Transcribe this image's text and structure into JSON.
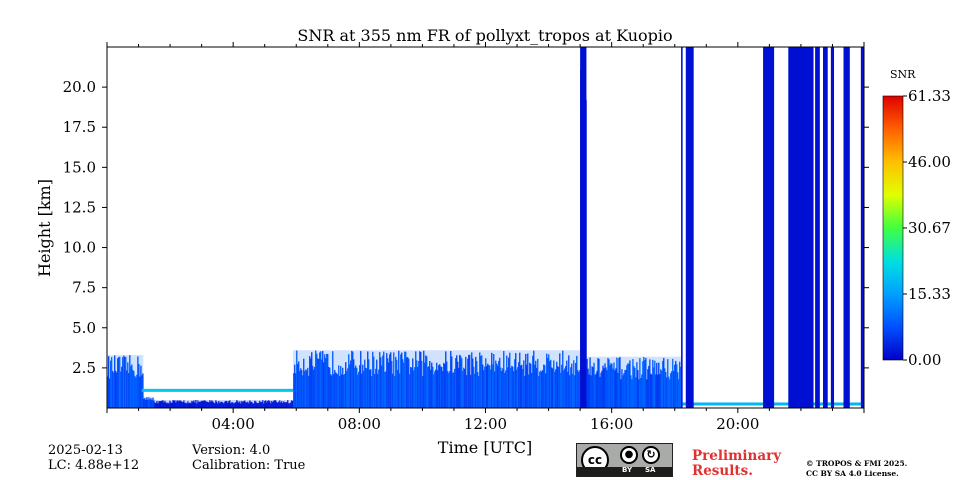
{
  "chart_data": {
    "type": "heatmap",
    "title": "SNR at 355 nm FR of pollyxt_tropos at Kuopio",
    "xlabel": "Time [UTC]",
    "ylabel": "Height [km]",
    "xlim_hours": [
      0,
      24
    ],
    "ylim_km": [
      0,
      22.5
    ],
    "x_ticks": [
      {
        "hour": 4,
        "label": "04:00"
      },
      {
        "hour": 8,
        "label": "08:00"
      },
      {
        "hour": 12,
        "label": "12:00"
      },
      {
        "hour": 16,
        "label": "16:00"
      },
      {
        "hour": 20,
        "label": "20:00"
      }
    ],
    "y_ticks": [
      {
        "value": 2.5,
        "label": "2.5"
      },
      {
        "value": 5.0,
        "label": "5.0"
      },
      {
        "value": 7.5,
        "label": "7.5"
      },
      {
        "value": 10.0,
        "label": "10.0"
      },
      {
        "value": 12.5,
        "label": "12.5"
      },
      {
        "value": 15.0,
        "label": "15.0"
      },
      {
        "value": 17.5,
        "label": "17.5"
      },
      {
        "value": 20.0,
        "label": "20.0"
      }
    ],
    "colorbar": {
      "label": "SNR",
      "min": 0.0,
      "max": 61.33,
      "ticks": [
        {
          "value": 0.0,
          "label": "0.00"
        },
        {
          "value": 15.33,
          "label": "15.33"
        },
        {
          "value": 30.67,
          "label": "30.67"
        },
        {
          "value": 46.0,
          "label": "46.00"
        },
        {
          "value": 61.33,
          "label": "61.33"
        }
      ],
      "colors": [
        "#0000c8",
        "#0050ff",
        "#00a0ff",
        "#00e0e0",
        "#40ff40",
        "#e0ff00",
        "#ffc000",
        "#ff6000",
        "#e00000"
      ]
    },
    "signal_regions": [
      {
        "start_h": 0.0,
        "end_h": 1.15,
        "top_km": 3.3,
        "snr": 10
      },
      {
        "start_h": 1.15,
        "end_h": 1.5,
        "top_km": 0.7,
        "snr": 8
      },
      {
        "start_h": 1.5,
        "end_h": 5.9,
        "top_km": 0.5,
        "snr": 3
      },
      {
        "start_h": 5.9,
        "end_h": 15.0,
        "top_km": 3.6,
        "snr": 9
      },
      {
        "start_h": 15.0,
        "end_h": 15.2,
        "top_km": 22.5,
        "snr": 1
      },
      {
        "start_h": 15.2,
        "end_h": 18.2,
        "top_km": 3.2,
        "snr": 9
      }
    ],
    "cloud_layers": [
      {
        "start_h": 1.1,
        "end_h": 5.9,
        "height_km": 1.1,
        "snr": 20
      },
      {
        "start_h": 18.2,
        "end_h": 24.0,
        "height_km": 0.25,
        "snr": 18
      }
    ],
    "noise_curtains": [
      {
        "start_h": 15.0,
        "end_h": 15.2
      },
      {
        "start_h": 18.2,
        "end_h": 18.25
      },
      {
        "start_h": 18.35,
        "end_h": 18.6
      },
      {
        "start_h": 20.8,
        "end_h": 21.15
      },
      {
        "start_h": 21.6,
        "end_h": 22.4
      },
      {
        "start_h": 22.45,
        "end_h": 22.6
      },
      {
        "start_h": 22.7,
        "end_h": 22.85
      },
      {
        "start_h": 22.95,
        "end_h": 23.05
      },
      {
        "start_h": 23.35,
        "end_h": 23.55
      },
      {
        "start_h": 23.9,
        "end_h": 24.0
      }
    ]
  },
  "footer": {
    "date": "2025-02-13",
    "lc": "LC: 4.88e+12",
    "version": "Version: 4.0",
    "calibration": "Calibration: True",
    "preliminary_line1": "Preliminary",
    "preliminary_line2": "Results.",
    "copyright_line1": "© TROPOS & FMI 2025.",
    "copyright_line2": "CC BY SA 4.0 License.",
    "cc_badge_labels": [
      "BY",
      "SA"
    ]
  }
}
